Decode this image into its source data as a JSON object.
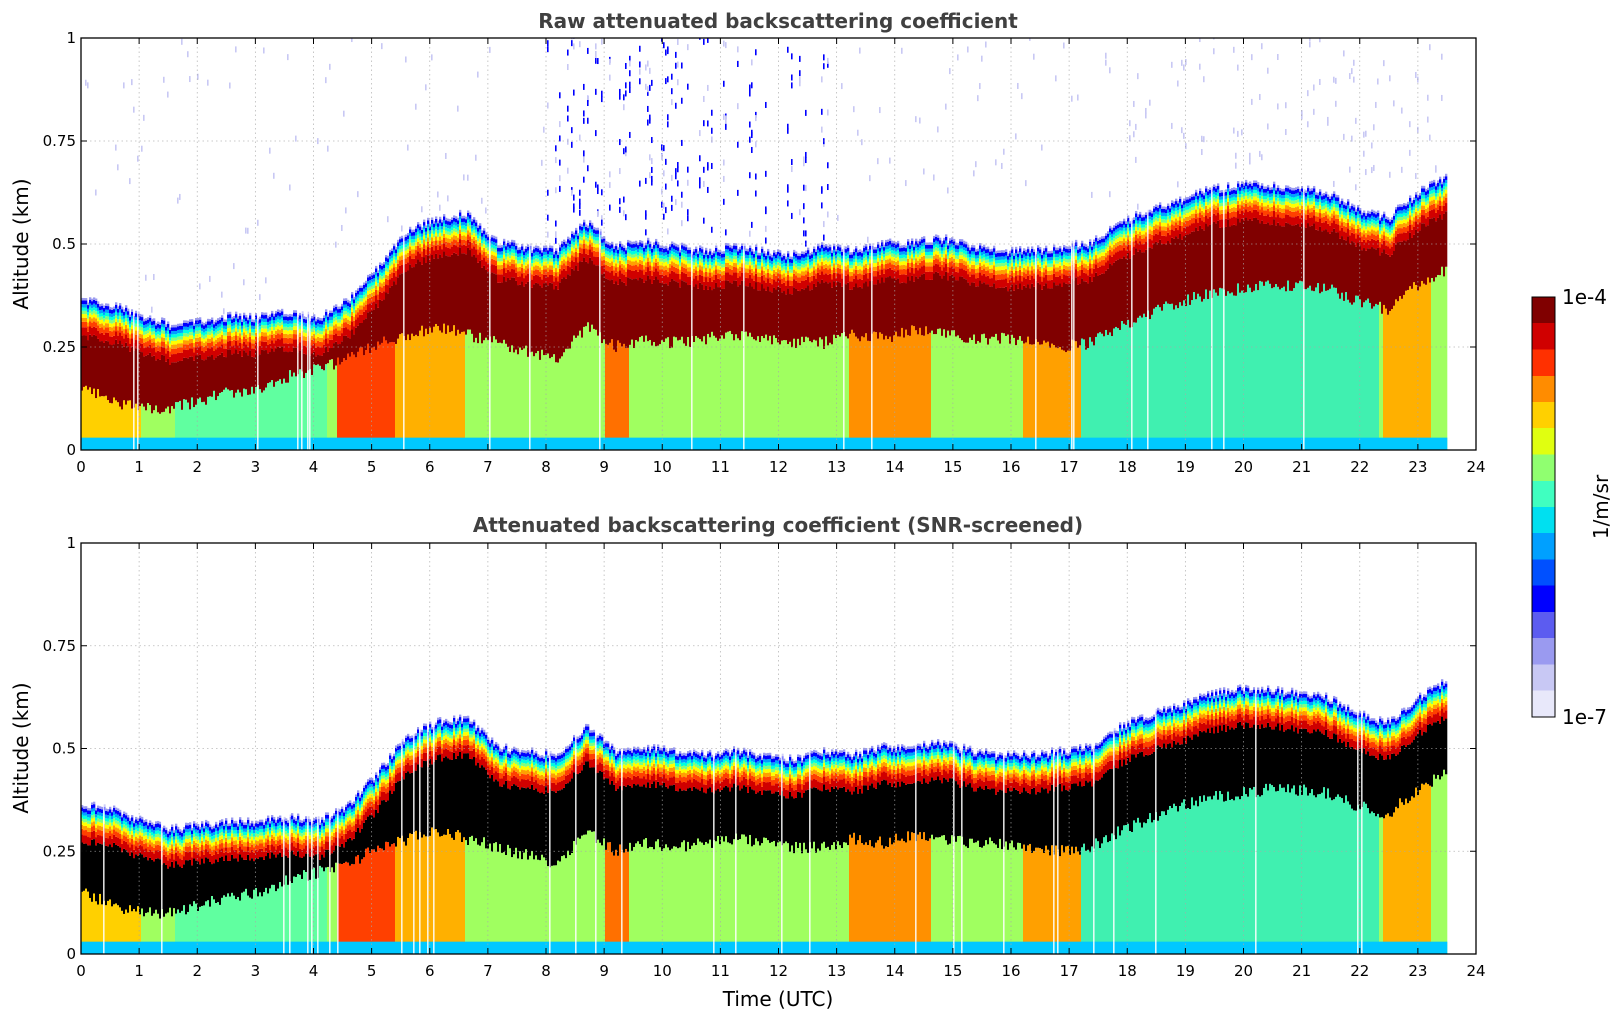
{
  "chart_data": [
    {
      "type": "heatmap",
      "title": "Raw attenuated backscattering coefficient",
      "xlabel": "",
      "ylabel": "Altitude (km)",
      "xlim": [
        0,
        24
      ],
      "ylim": [
        0,
        1
      ],
      "xticks": [
        0,
        1,
        2,
        3,
        4,
        5,
        6,
        7,
        8,
        9,
        10,
        11,
        12,
        13,
        14,
        15,
        16,
        17,
        18,
        19,
        20,
        21,
        22,
        23,
        24
      ],
      "yticks": [
        0,
        0.25,
        0.5,
        0.75,
        1
      ],
      "ytick_labels": [
        "0",
        "0.25",
        "0.5",
        "0.75",
        "1"
      ],
      "grid": true,
      "screened": false,
      "layer_top_km": [
        0.36,
        0.35,
        0.32,
        0.3,
        0.31,
        0.32,
        0.32,
        0.33,
        0.32,
        0.36,
        0.44,
        0.53,
        0.56,
        0.57,
        0.5,
        0.49,
        0.48,
        0.55,
        0.49,
        0.5,
        0.49,
        0.48,
        0.49,
        0.48,
        0.47,
        0.49,
        0.48,
        0.5,
        0.5,
        0.51,
        0.49,
        0.48,
        0.48,
        0.49,
        0.5,
        0.55,
        0.58,
        0.6,
        0.63,
        0.64,
        0.64,
        0.63,
        0.62,
        0.58,
        0.56,
        0.62,
        0.66,
        0.67
      ],
      "dense_base_km": [
        0.15,
        0.12,
        0.1,
        0.1,
        0.12,
        0.14,
        0.15,
        0.18,
        0.2,
        0.22,
        0.26,
        0.28,
        0.3,
        0.28,
        0.26,
        0.24,
        0.22,
        0.3,
        0.25,
        0.27,
        0.26,
        0.27,
        0.28,
        0.27,
        0.26,
        0.26,
        0.28,
        0.27,
        0.29,
        0.28,
        0.27,
        0.27,
        0.26,
        0.25,
        0.26,
        0.3,
        0.33,
        0.36,
        0.38,
        0.39,
        0.4,
        0.4,
        0.39,
        0.36,
        0.34,
        0.4,
        0.44,
        0.45
      ]
    },
    {
      "type": "heatmap",
      "title": "Attenuated backscattering coefficient (SNR-screened)",
      "xlabel": "Time (UTC)",
      "ylabel": "Altitude (km)",
      "xlim": [
        0,
        24
      ],
      "ylim": [
        0,
        1
      ],
      "xticks": [
        0,
        1,
        2,
        3,
        4,
        5,
        6,
        7,
        8,
        9,
        10,
        11,
        12,
        13,
        14,
        15,
        16,
        17,
        18,
        19,
        20,
        21,
        22,
        23,
        24
      ],
      "yticks": [
        0,
        0.25,
        0.5,
        0.75,
        1
      ],
      "ytick_labels": [
        "0",
        "0.25",
        "0.5",
        "0.75",
        "1"
      ],
      "grid": true,
      "screened": true
    }
  ],
  "colorbar": {
    "label": "1/m/sr",
    "max_label": "1e-4",
    "min_label": "1e-7",
    "colors": [
      "#e8e8fa",
      "#c8c8f4",
      "#9a9af0",
      "#5c5cf0",
      "#0000ff",
      "#0050ff",
      "#00a0ff",
      "#00e0f0",
      "#40ffc0",
      "#90ff70",
      "#e0ff10",
      "#ffd000",
      "#ff8c00",
      "#ff3000",
      "#d00000",
      "#800000"
    ]
  },
  "colors": {
    "layer_bright": "#800000",
    "layer_masked": "#000000",
    "title": "#404040"
  }
}
